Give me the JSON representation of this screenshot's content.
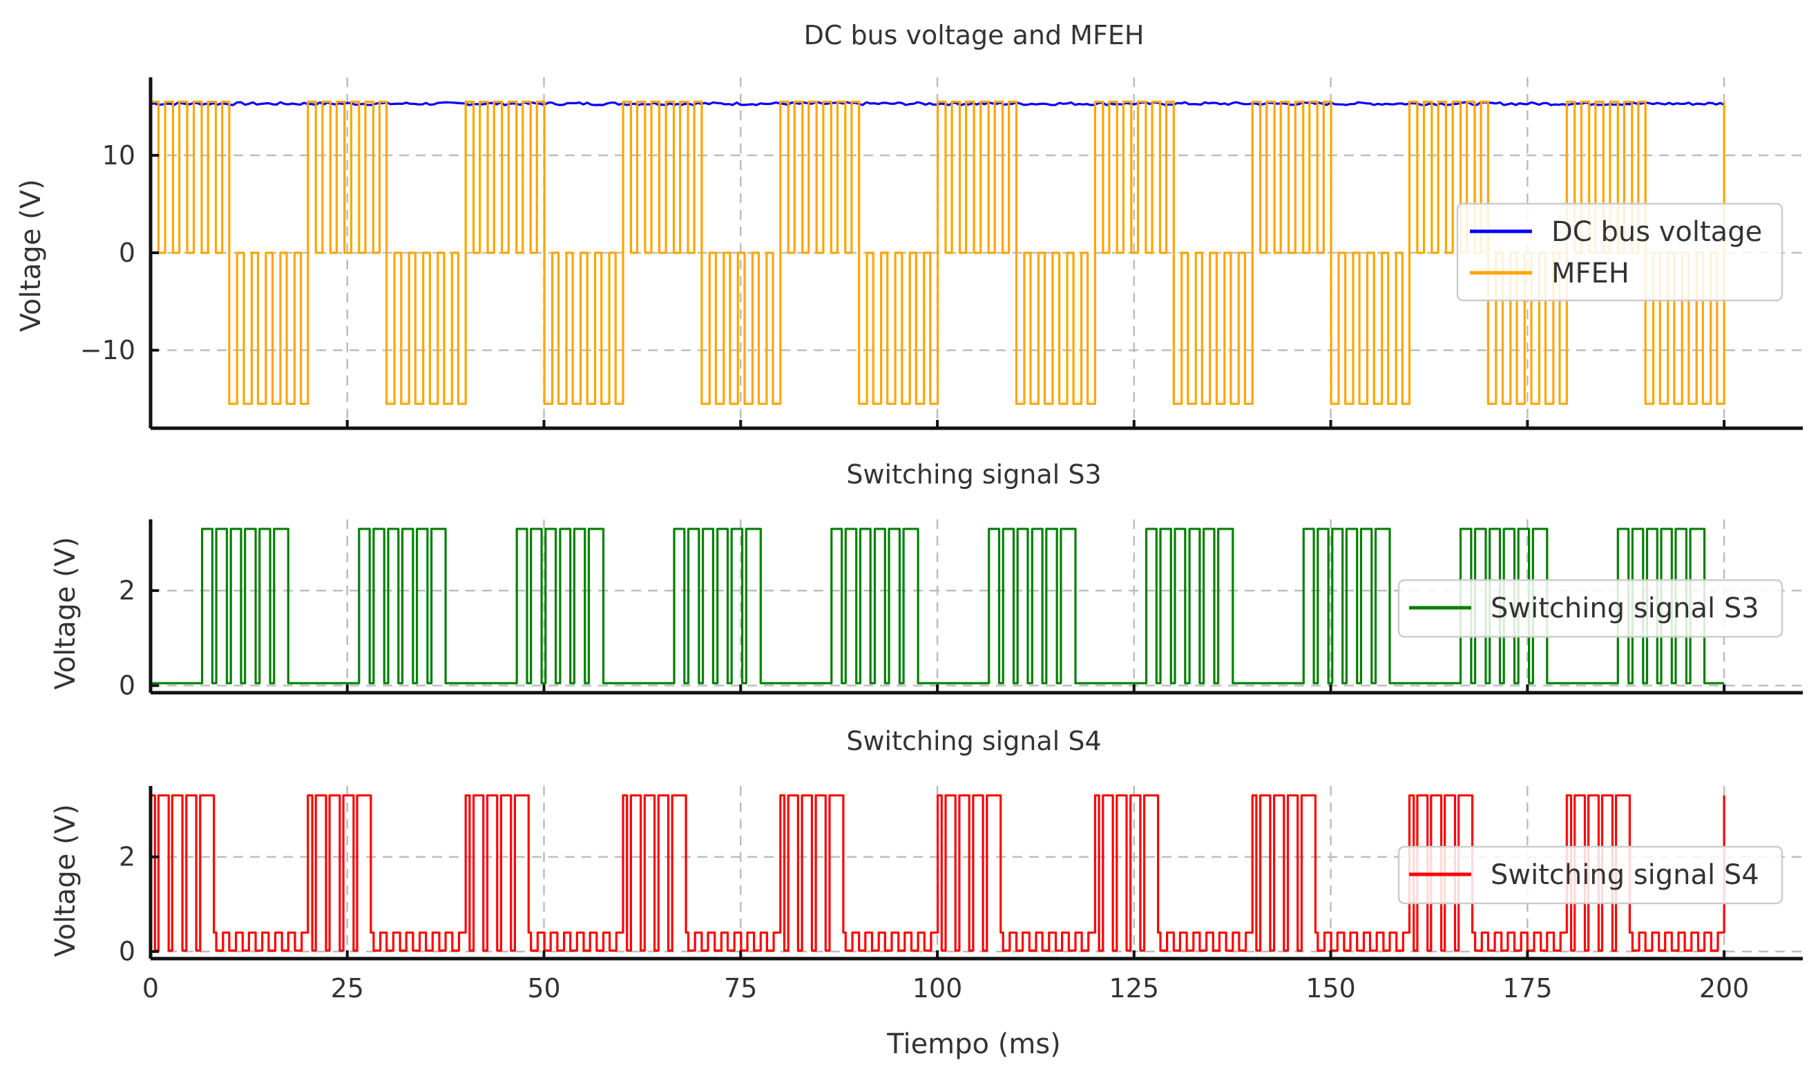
{
  "chart_data": [
    {
      "type": "line",
      "title": "DC bus voltage and MFEH",
      "xlabel": "",
      "ylabel": "Voltage (V)",
      "xlim": [
        0,
        210
      ],
      "ylim": [
        -18,
        18
      ],
      "xticks": [
        0,
        25,
        50,
        75,
        100,
        125,
        150,
        175,
        200
      ],
      "yticks": [
        -10,
        0,
        10
      ],
      "ytick_labels": [
        "−10",
        "0",
        "10"
      ],
      "grid": true,
      "legend": "center-right",
      "series": [
        {
          "name": "DC bus voltage",
          "color": "#0000ff",
          "level": 15.3,
          "ripple": 0.3,
          "x_range": [
            0,
            200
          ]
        },
        {
          "name": "MFEH",
          "color": "#ffa500",
          "period_ms": 20,
          "high": 15.5,
          "low": -15.5,
          "peak": 16.3,
          "pulses_per_half": 5,
          "x_range": [
            0,
            200
          ]
        }
      ]
    },
    {
      "type": "line",
      "title": "Switching signal S3",
      "xlabel": "",
      "ylabel": "Voltage (V)",
      "xlim": [
        0,
        210
      ],
      "ylim": [
        -0.15,
        3.5
      ],
      "xticks": [
        0,
        25,
        50,
        75,
        100,
        125,
        150,
        175,
        200
      ],
      "yticks": [
        0,
        2
      ],
      "ytick_labels": [
        "0",
        "2"
      ],
      "grid": true,
      "legend": "center-right",
      "series": [
        {
          "name": "Switching signal S3",
          "color": "#008000",
          "high": 3.3,
          "low": 0.05,
          "period_ms": 20,
          "active_window_ms": [
            6.5,
            17.5
          ],
          "pulses": 6,
          "x_range": [
            0,
            200
          ]
        }
      ]
    },
    {
      "type": "line",
      "title": "Switching signal S4",
      "xlabel": "Tiempo (ms)",
      "ylabel": "Voltage (V)",
      "xlim": [
        0,
        210
      ],
      "ylim": [
        -0.15,
        3.5
      ],
      "xticks": [
        0,
        25,
        50,
        75,
        100,
        125,
        150,
        175,
        200
      ],
      "xtick_labels": [
        "0",
        "25",
        "50",
        "75",
        "100",
        "125",
        "150",
        "175",
        "200"
      ],
      "yticks": [
        0,
        2
      ],
      "ytick_labels": [
        "0",
        "2"
      ],
      "grid": true,
      "legend": "center-right",
      "series": [
        {
          "name": "Switching signal S4",
          "color": "#ff0000",
          "high": 3.3,
          "low": 0.02,
          "ripple_level": 0.4,
          "period_ms": 20,
          "active_window_ms": [
            -2.5,
            8
          ],
          "pulses": 6,
          "x_range": [
            0,
            200
          ]
        }
      ]
    }
  ]
}
